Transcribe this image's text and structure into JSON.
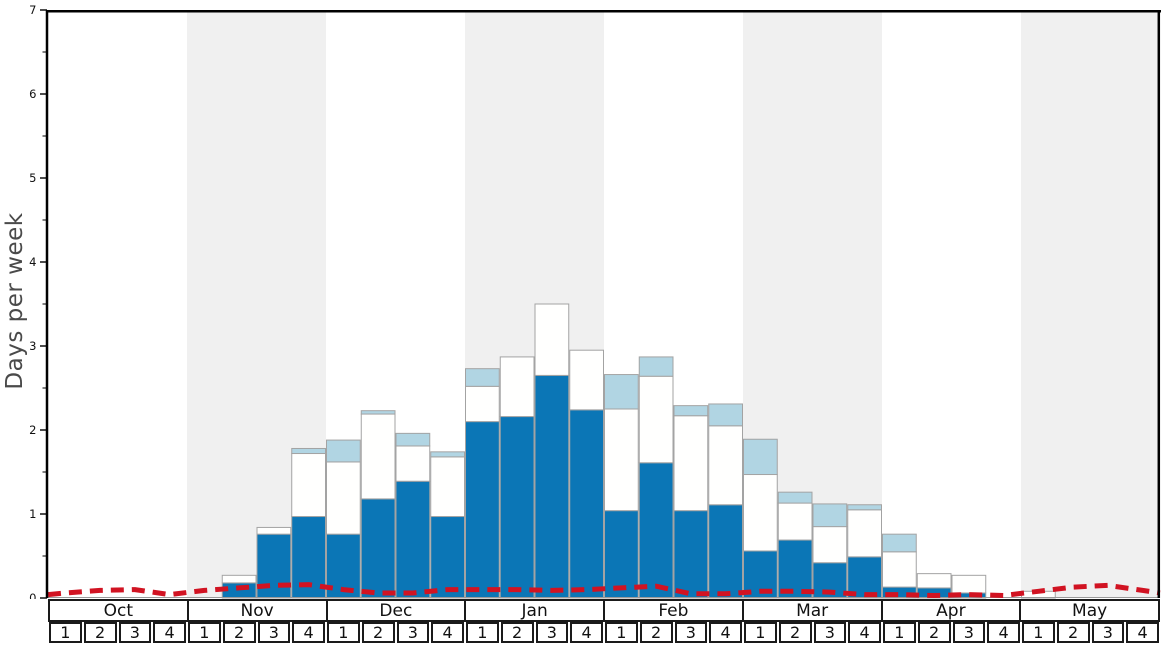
{
  "y_axis": {
    "label": "Days per week",
    "ticks": [
      0,
      1,
      2,
      3,
      4,
      5,
      6,
      7
    ],
    "minor_step": 0.5,
    "max": 7
  },
  "chart_data": {
    "type": "bar",
    "stacked": true,
    "title": "",
    "xlabel": "",
    "ylabel": "Days per week",
    "ylim": [
      0,
      7
    ],
    "grid": false,
    "legend": "none",
    "months": [
      {
        "label": "Oct",
        "shaded": false
      },
      {
        "label": "Nov",
        "shaded": true
      },
      {
        "label": "Dec",
        "shaded": false
      },
      {
        "label": "Jan",
        "shaded": true
      },
      {
        "label": "Feb",
        "shaded": false
      },
      {
        "label": "Mar",
        "shaded": true
      },
      {
        "label": "Apr",
        "shaded": false
      },
      {
        "label": "May",
        "shaded": true
      }
    ],
    "week_labels": [
      "1",
      "2",
      "3",
      "4"
    ],
    "categories": [
      "Oct-1",
      "Oct-2",
      "Oct-3",
      "Oct-4",
      "Nov-1",
      "Nov-2",
      "Nov-3",
      "Nov-4",
      "Dec-1",
      "Dec-2",
      "Dec-3",
      "Dec-4",
      "Jan-1",
      "Jan-2",
      "Jan-3",
      "Jan-4",
      "Feb-1",
      "Feb-2",
      "Feb-3",
      "Feb-4",
      "Mar-1",
      "Mar-2",
      "Mar-3",
      "Mar-4",
      "Apr-1",
      "Apr-2",
      "Apr-3",
      "Apr-4",
      "May-1",
      "May-2",
      "May-3",
      "May-4"
    ],
    "series": [
      {
        "name": "dark-blue-bars",
        "color": "#0b76b6",
        "values": [
          0,
          0,
          0,
          0,
          0,
          0.18,
          0.76,
          0.97,
          0.76,
          1.18,
          1.39,
          0.97,
          2.1,
          2.16,
          2.65,
          2.24,
          1.04,
          1.61,
          1.04,
          1.11,
          0.56,
          0.69,
          0.42,
          0.49,
          0.13,
          0.12,
          0.06,
          0,
          0,
          0,
          0,
          0
        ]
      },
      {
        "name": "white-bars",
        "color": "#fffffe",
        "values": [
          0,
          0,
          0,
          0,
          0,
          0.09,
          0.08,
          0.75,
          0.86,
          1.01,
          0.42,
          0.71,
          0.42,
          0.71,
          0.85,
          0.71,
          1.21,
          1.03,
          1.13,
          0.94,
          0.91,
          0.44,
          0.43,
          0.56,
          0.42,
          0.17,
          0.21,
          0,
          0.08,
          0,
          0,
          0
        ]
      },
      {
        "name": "light-blue-bars",
        "color": "#b1d5e3",
        "values": [
          0,
          0,
          0,
          0,
          0,
          0,
          0,
          0.06,
          0.26,
          0.04,
          0.15,
          0.06,
          0.21,
          0,
          0,
          0,
          0.41,
          0.23,
          0.12,
          0.26,
          0.42,
          0.13,
          0.27,
          0.06,
          0.21,
          0,
          0,
          0,
          0,
          0,
          0,
          0
        ]
      }
    ],
    "line": {
      "name": "red-dashed-line",
      "color": "#d11322",
      "style": "dashed",
      "values": [
        0.06,
        0.09,
        0.1,
        0.04,
        0.09,
        0.12,
        0.15,
        0.16,
        0.1,
        0.06,
        0.06,
        0.1,
        0.1,
        0.1,
        0.09,
        0.1,
        0.12,
        0.14,
        0.05,
        0.05,
        0.08,
        0.08,
        0.07,
        0.04,
        0.04,
        0.03,
        0.04,
        0.03,
        0.08,
        0.13,
        0.15,
        0.09
      ],
      "edge_start": 0.04,
      "edge_end": 0.06
    },
    "colors": {
      "band": "#f0f0f0",
      "bar_border": "#a3a3a3",
      "axis": "#000000",
      "baseline": "#999999"
    }
  }
}
